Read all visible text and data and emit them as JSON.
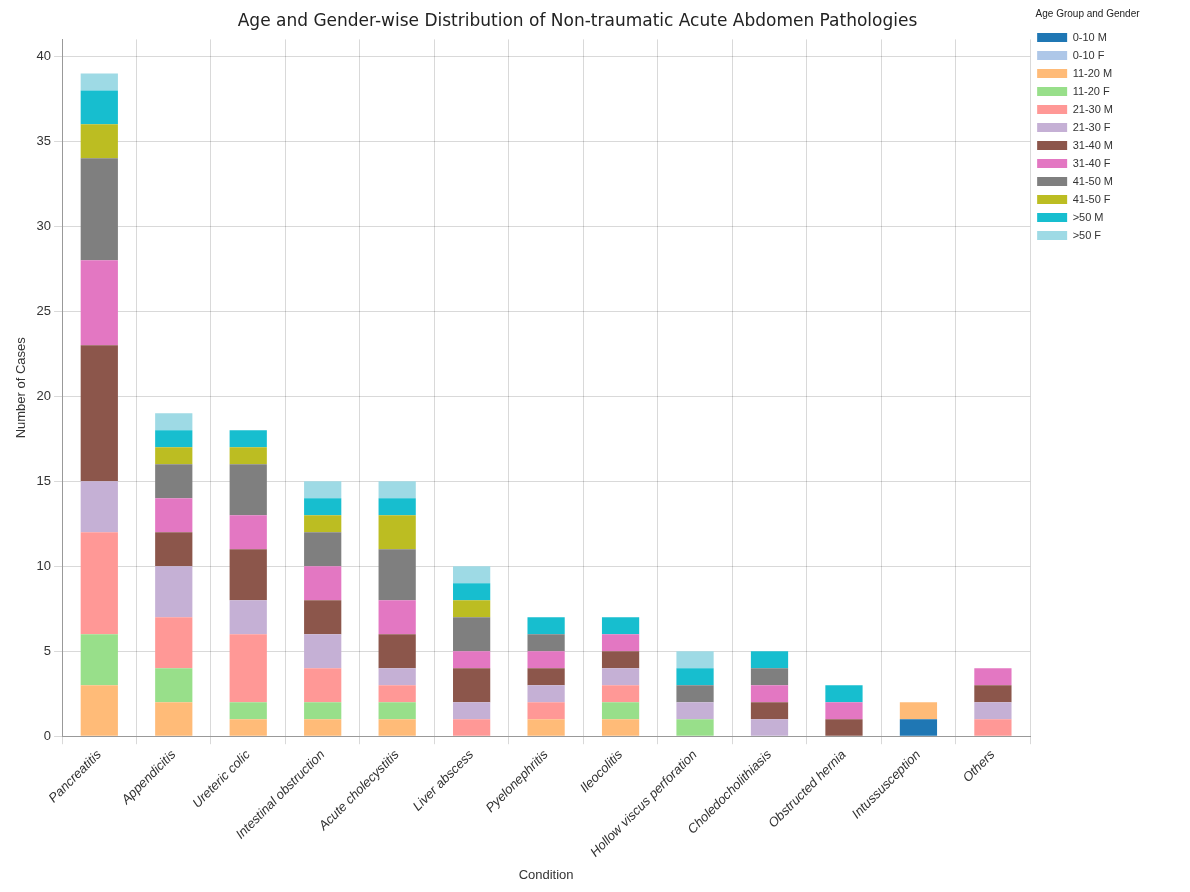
{
  "chart_data": {
    "type": "bar",
    "title": "Age and Gender-wise Distribution of Non-traumatic Acute Abdomen Pathologies",
    "xlabel": "Condition",
    "ylabel": "Number of Cases",
    "legend_title": "Age Group and Gender",
    "categories": [
      "Pancreatitis",
      "Appendicitis",
      "Ureteric colic",
      "Intestinal obstruction",
      "Acute cholecystitis",
      "Liver abscess",
      "Pyelonephritis",
      "Ileocolitis",
      "Hollow viscus perforation",
      "Choledocholithiasis",
      "Obstructed hernia",
      "Intussusception",
      "Others"
    ],
    "stacked": true,
    "ylim": [
      0,
      41
    ],
    "yticks": [
      0,
      5,
      10,
      15,
      20,
      25,
      30,
      35,
      40
    ],
    "grid": true,
    "legend": "top right",
    "series": [
      {
        "name": "0-10 M",
        "color": "#1f77b4",
        "values": [
          0,
          0,
          0,
          0,
          0,
          0,
          0,
          0,
          0,
          0,
          0,
          1,
          0
        ]
      },
      {
        "name": "0-10 F",
        "color": "#aec7e8",
        "values": [
          0,
          0,
          0,
          0,
          0,
          0,
          0,
          0,
          0,
          0,
          0,
          0,
          0
        ]
      },
      {
        "name": "11-20 M",
        "color": "#ffbb78",
        "values": [
          3,
          2,
          1,
          1,
          1,
          0,
          1,
          1,
          0,
          0,
          0,
          1,
          0
        ]
      },
      {
        "name": "11-20 F",
        "color": "#98df8a",
        "values": [
          3,
          2,
          1,
          1,
          1,
          0,
          0,
          1,
          1,
          0,
          0,
          0,
          0
        ]
      },
      {
        "name": "21-30 M",
        "color": "#ff9896",
        "values": [
          6,
          3,
          4,
          2,
          1,
          1,
          1,
          1,
          0,
          0,
          0,
          0,
          1
        ]
      },
      {
        "name": "21-30 F",
        "color": "#c5b0d5",
        "values": [
          3,
          3,
          2,
          2,
          1,
          1,
          1,
          1,
          1,
          1,
          0,
          0,
          1
        ]
      },
      {
        "name": "31-40 M",
        "color": "#8c564b",
        "values": [
          8,
          2,
          3,
          2,
          2,
          2,
          1,
          1,
          0,
          1,
          1,
          0,
          1
        ]
      },
      {
        "name": "31-40 F",
        "color": "#e377c2",
        "values": [
          5,
          2,
          2,
          2,
          2,
          1,
          1,
          1,
          0,
          1,
          1,
          0,
          1
        ]
      },
      {
        "name": "41-50 M",
        "color": "#7f7f7f",
        "values": [
          6,
          2,
          3,
          2,
          3,
          2,
          1,
          0,
          1,
          1,
          0,
          0,
          0
        ]
      },
      {
        "name": "41-50 F",
        "color": "#bcbd22",
        "values": [
          2,
          1,
          1,
          1,
          2,
          1,
          0,
          0,
          0,
          0,
          0,
          0,
          0
        ]
      },
      {
        "name": ">50 M",
        "color": "#17becf",
        "values": [
          2,
          1,
          1,
          1,
          1,
          1,
          1,
          1,
          1,
          1,
          1,
          0,
          0
        ]
      },
      {
        "name": ">50 F",
        "color": "#9edae5",
        "values": [
          1,
          1,
          0,
          1,
          1,
          1,
          0,
          0,
          1,
          0,
          0,
          0,
          0
        ]
      }
    ]
  }
}
